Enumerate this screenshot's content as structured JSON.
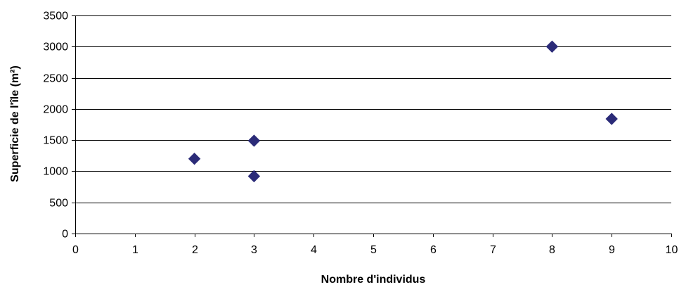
{
  "chart_data": {
    "type": "scatter",
    "title": "",
    "xlabel": "Nombre d'individus",
    "ylabel": "Superficie de l'île (m²)",
    "xlim": [
      0,
      10
    ],
    "ylim": [
      0,
      3500
    ],
    "x_ticks": [
      0,
      1,
      2,
      3,
      4,
      5,
      6,
      7,
      8,
      9,
      10
    ],
    "y_ticks": [
      0,
      500,
      1000,
      1500,
      2000,
      2500,
      3000,
      3500
    ],
    "grid": "horizontal",
    "legend": "none",
    "marker": "diamond",
    "marker_color": "#2b2b78",
    "points": [
      {
        "x": 2,
        "y": 1200
      },
      {
        "x": 3,
        "y": 1490
      },
      {
        "x": 3,
        "y": 920
      },
      {
        "x": 8,
        "y": 3000
      },
      {
        "x": 9,
        "y": 1840
      }
    ]
  }
}
